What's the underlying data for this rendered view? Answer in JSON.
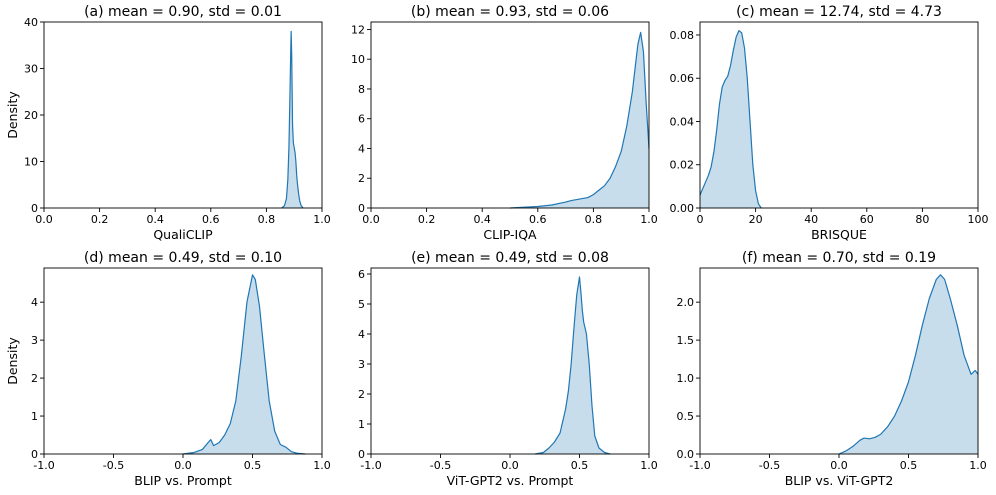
{
  "chart_data": [
    {
      "type": "area",
      "title": "(a) mean = 0.90, std = 0.01",
      "xlabel": "QualiCLIP",
      "ylabel": "Density",
      "xlim": [
        0.0,
        1.0
      ],
      "ylim": [
        0,
        40
      ],
      "xticks": [
        0.0,
        0.2,
        0.4,
        0.6,
        0.8,
        1.0
      ],
      "xtick_labels": [
        "0.0",
        "0.2",
        "0.4",
        "0.6",
        "0.8",
        "1.0"
      ],
      "yticks": [
        0,
        10,
        20,
        30,
        40
      ],
      "ytick_labels": [
        "0",
        "10",
        "20",
        "30",
        "40"
      ],
      "series": [
        {
          "name": "QualiCLIP density",
          "x": [
            0.855,
            0.865,
            0.872,
            0.877,
            0.881,
            0.884,
            0.887,
            0.889,
            0.891,
            0.894,
            0.897,
            0.9,
            0.903,
            0.906,
            0.909,
            0.912,
            0.916,
            0.92,
            0.925,
            0.932
          ],
          "y": [
            0,
            0.5,
            2,
            6,
            13,
            22,
            32,
            38,
            33,
            18,
            14,
            13,
            12,
            10,
            7,
            5,
            3,
            1.5,
            0.5,
            0
          ]
        }
      ]
    },
    {
      "type": "area",
      "title": "(b) mean = 0.93, std = 0.06",
      "xlabel": "CLIP-IQA",
      "ylabel": "",
      "xlim": [
        0.0,
        1.0
      ],
      "ylim": [
        0,
        12.5
      ],
      "xticks": [
        0.0,
        0.2,
        0.4,
        0.6,
        0.8,
        1.0
      ],
      "xtick_labels": [
        "0.0",
        "0.2",
        "0.4",
        "0.6",
        "0.8",
        "1.0"
      ],
      "yticks": [
        0,
        2,
        4,
        6,
        8,
        10,
        12
      ],
      "ytick_labels": [
        "0",
        "2",
        "4",
        "6",
        "8",
        "10",
        "12"
      ],
      "series": [
        {
          "name": "CLIP-IQA density",
          "x": [
            0.5,
            0.55,
            0.6,
            0.65,
            0.7,
            0.72,
            0.75,
            0.78,
            0.8,
            0.82,
            0.84,
            0.86,
            0.88,
            0.9,
            0.92,
            0.94,
            0.95,
            0.96,
            0.97,
            0.98,
            0.99,
            1.0
          ],
          "y": [
            0,
            0.05,
            0.1,
            0.2,
            0.4,
            0.5,
            0.6,
            0.7,
            0.9,
            1.2,
            1.5,
            2.0,
            2.8,
            3.8,
            5.5,
            7.8,
            9.4,
            11.0,
            11.8,
            10.5,
            7.0,
            4.0
          ]
        }
      ]
    },
    {
      "type": "area",
      "title": "(c) mean = 12.74, std = 4.73",
      "xlabel": "BRISQUE",
      "ylabel": "",
      "xlim": [
        0,
        100
      ],
      "ylim": [
        0,
        0.086
      ],
      "xticks": [
        0,
        20,
        40,
        60,
        80,
        100
      ],
      "xtick_labels": [
        "0",
        "20",
        "40",
        "60",
        "80",
        "100"
      ],
      "yticks": [
        0.0,
        0.02,
        0.04,
        0.06,
        0.08
      ],
      "ytick_labels": [
        "0.00",
        "0.02",
        "0.04",
        "0.06",
        "0.08"
      ],
      "series": [
        {
          "name": "BRISQUE density",
          "x": [
            0,
            1,
            2,
            3,
            4,
            5,
            6,
            7,
            8,
            9,
            10,
            11,
            12,
            13,
            14,
            15,
            16,
            17,
            18,
            19,
            20,
            21,
            22
          ],
          "y": [
            0.006,
            0.009,
            0.012,
            0.015,
            0.019,
            0.026,
            0.036,
            0.048,
            0.056,
            0.059,
            0.061,
            0.066,
            0.073,
            0.079,
            0.082,
            0.081,
            0.074,
            0.06,
            0.04,
            0.02,
            0.008,
            0.002,
            0
          ]
        }
      ]
    },
    {
      "type": "area",
      "title": "(d) mean = 0.49, std = 0.10",
      "xlabel": "BLIP vs. Prompt",
      "ylabel": "Density",
      "xlim": [
        -1.0,
        1.0
      ],
      "ylim": [
        0,
        4.9
      ],
      "xticks": [
        -1.0,
        -0.5,
        0.0,
        0.5,
        1.0
      ],
      "xtick_labels": [
        "-1.0",
        "-0.5",
        "0.0",
        "0.5",
        "1.0"
      ],
      "yticks": [
        0,
        1,
        2,
        3,
        4
      ],
      "ytick_labels": [
        "0",
        "1",
        "2",
        "3",
        "4"
      ],
      "series": [
        {
          "name": "BLIP vs. Prompt density",
          "x": [
            0.0,
            0.08,
            0.14,
            0.18,
            0.2,
            0.22,
            0.26,
            0.3,
            0.34,
            0.38,
            0.42,
            0.46,
            0.5,
            0.52,
            0.55,
            0.58,
            0.62,
            0.66,
            0.7,
            0.74,
            0.78,
            0.82,
            0.88
          ],
          "y": [
            0,
            0.04,
            0.12,
            0.3,
            0.38,
            0.22,
            0.3,
            0.5,
            0.8,
            1.4,
            2.6,
            4.0,
            4.72,
            4.6,
            3.9,
            2.8,
            1.4,
            0.6,
            0.25,
            0.18,
            0.06,
            0.02,
            0
          ]
        }
      ]
    },
    {
      "type": "area",
      "title": "(e) mean = 0.49, std = 0.08",
      "xlabel": "ViT-GPT2 vs. Prompt",
      "ylabel": "",
      "xlim": [
        -1.0,
        1.0
      ],
      "ylim": [
        0,
        6.2
      ],
      "xticks": [
        -1.0,
        -0.5,
        0.0,
        0.5,
        1.0
      ],
      "xtick_labels": [
        "-1.0",
        "-0.5",
        "0.0",
        "0.5",
        "1.0"
      ],
      "yticks": [
        0,
        1,
        2,
        3,
        4,
        5,
        6
      ],
      "ytick_labels": [
        "0",
        "1",
        "2",
        "3",
        "4",
        "5",
        "6"
      ],
      "series": [
        {
          "name": "ViT-GPT2 vs. Prompt density",
          "x": [
            0.18,
            0.24,
            0.28,
            0.32,
            0.36,
            0.4,
            0.42,
            0.44,
            0.46,
            0.48,
            0.49,
            0.5,
            0.51,
            0.52,
            0.53,
            0.55,
            0.57,
            0.59,
            0.61,
            0.64,
            0.68,
            0.72
          ],
          "y": [
            0,
            0.05,
            0.2,
            0.4,
            0.7,
            1.5,
            2.1,
            3.0,
            4.2,
            5.3,
            5.6,
            5.9,
            5.4,
            4.8,
            4.4,
            4.0,
            3.0,
            1.6,
            0.6,
            0.2,
            0.05,
            0
          ]
        }
      ]
    },
    {
      "type": "area",
      "title": "(f) mean = 0.70, std = 0.19",
      "xlabel": "BLIP vs. ViT-GPT2",
      "ylabel": "",
      "xlim": [
        -1.0,
        1.0
      ],
      "ylim": [
        0,
        2.45
      ],
      "xticks": [
        -1.0,
        -0.5,
        0.0,
        0.5,
        1.0
      ],
      "xtick_labels": [
        "-1.0",
        "-0.5",
        "0.0",
        "0.5",
        "1.0"
      ],
      "yticks": [
        0.0,
        0.5,
        1.0,
        1.5,
        2.0
      ],
      "ytick_labels": [
        "0.0",
        "0.5",
        "1.0",
        "1.5",
        "2.0"
      ],
      "series": [
        {
          "name": "BLIP vs. ViT-GPT2 density",
          "x": [
            0.0,
            0.05,
            0.1,
            0.15,
            0.18,
            0.22,
            0.26,
            0.3,
            0.35,
            0.4,
            0.45,
            0.5,
            0.55,
            0.6,
            0.65,
            0.7,
            0.73,
            0.76,
            0.8,
            0.85,
            0.9,
            0.95,
            0.98,
            1.0
          ],
          "y": [
            0,
            0.04,
            0.1,
            0.18,
            0.21,
            0.2,
            0.22,
            0.26,
            0.36,
            0.5,
            0.7,
            0.95,
            1.3,
            1.7,
            2.05,
            2.3,
            2.36,
            2.3,
            2.05,
            1.7,
            1.3,
            1.05,
            1.1,
            1.05
          ]
        }
      ]
    }
  ],
  "colors": {
    "line": "#1f77b4",
    "fill": "#1f77b4",
    "axis": "#000000"
  }
}
